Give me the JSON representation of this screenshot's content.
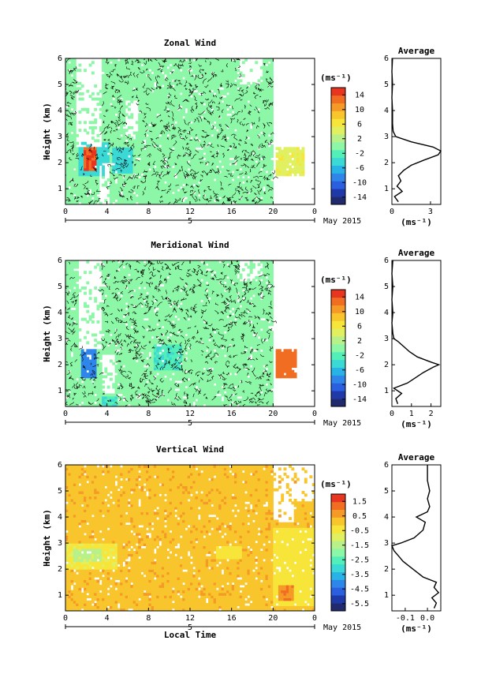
{
  "chart_data": [
    {
      "type": "heatmap",
      "title": "Zonal Wind",
      "ylabel": "Height (km)",
      "xlabel": "",
      "xticks": [
        "0",
        "4",
        "8",
        "12",
        "16",
        "20",
        "0"
      ],
      "yticks": [
        "1",
        "2",
        "3",
        "4",
        "5",
        "6"
      ],
      "ylim": [
        0.4,
        6
      ],
      "xlim": [
        0,
        24
      ],
      "date_label": "5",
      "month_label": "May 2015",
      "colorbar": {
        "unit": "(ms⁻¹)",
        "ticks": [
          "14",
          "10",
          "6",
          "2",
          "-2",
          "-6",
          "-10",
          "-14"
        ],
        "range": [
          -16,
          16
        ]
      },
      "regions": [
        {
          "x": [
            0,
            20
          ],
          "y": [
            0.4,
            6
          ],
          "value": 0,
          "desc": "background"
        },
        {
          "x": [
            1.2,
            4.2
          ],
          "y": [
            1.5,
            2.8
          ],
          "value": -4
        },
        {
          "x": [
            1.8,
            3.0
          ],
          "y": [
            1.7,
            2.6
          ],
          "value": 14
        },
        {
          "x": [
            4.6,
            6.4
          ],
          "y": [
            1.6,
            2.6
          ],
          "value": -4
        },
        {
          "x": [
            20.2,
            23.0
          ],
          "y": [
            1.5,
            2.6
          ],
          "value": 5
        }
      ],
      "gaps": [
        {
          "x": [
            1.0,
            3.6
          ],
          "y": [
            2.6,
            6.0
          ]
        },
        {
          "x": [
            3.2,
            4.2
          ],
          "y": [
            0.4,
            2.0
          ]
        },
        {
          "x": [
            5.8,
            7.0
          ],
          "y": [
            3.0,
            4.4
          ]
        },
        {
          "x": [
            16.8,
            19.0
          ],
          "y": [
            5.0,
            6.0
          ]
        }
      ],
      "average": {
        "title": "Average",
        "xlabel": "(ms⁻¹)",
        "xticks": [
          "0",
          "3"
        ],
        "xlim": [
          0,
          3.8
        ],
        "height": [
          0.5,
          0.7,
          0.9,
          1.1,
          1.3,
          1.5,
          1.7,
          1.9,
          2.1,
          2.3,
          2.45,
          2.6,
          2.8,
          3.0,
          3.2,
          3.5,
          4.0,
          4.5,
          5.0,
          5.5,
          6.0
        ],
        "values": [
          0.5,
          0.2,
          0.8,
          0.4,
          0.7,
          0.5,
          0.9,
          1.5,
          2.5,
          3.6,
          3.8,
          3.2,
          1.5,
          0.3,
          0.1,
          0.05,
          0.05,
          0.0,
          0.05,
          0.0,
          0.05
        ]
      }
    },
    {
      "type": "heatmap",
      "title": "Meridional Wind",
      "ylabel": "Height (km)",
      "xlabel": "",
      "xticks": [
        "0",
        "4",
        "8",
        "12",
        "16",
        "20",
        "0"
      ],
      "yticks": [
        "1",
        "2",
        "3",
        "4",
        "5",
        "6"
      ],
      "ylim": [
        0.4,
        6
      ],
      "xlim": [
        0,
        24
      ],
      "date_label": "5",
      "month_label": "May 2015",
      "colorbar": {
        "unit": "(ms⁻¹)",
        "ticks": [
          "14",
          "10",
          "6",
          "2",
          "-2",
          "-6",
          "-10",
          "-14"
        ],
        "range": [
          -16,
          16
        ]
      },
      "regions": [
        {
          "x": [
            0,
            20
          ],
          "y": [
            0.4,
            6
          ],
          "value": 0,
          "desc": "background"
        },
        {
          "x": [
            1.5,
            3.0
          ],
          "y": [
            1.5,
            2.6
          ],
          "value": -9
        },
        {
          "x": [
            3.5,
            5.0
          ],
          "y": [
            0.4,
            0.8
          ],
          "value": -3
        },
        {
          "x": [
            8.6,
            11.2
          ],
          "y": [
            1.8,
            2.8
          ],
          "value": -3
        },
        {
          "x": [
            20.2,
            22.2
          ],
          "y": [
            1.5,
            2.6
          ],
          "value": 13
        }
      ],
      "gaps": [
        {
          "x": [
            1.2,
            3.4
          ],
          "y": [
            2.6,
            6.0
          ]
        },
        {
          "x": [
            3.4,
            4.8
          ],
          "y": [
            0.9,
            2.4
          ]
        },
        {
          "x": [
            16.8,
            19.0
          ],
          "y": [
            5.2,
            6.0
          ]
        }
      ],
      "average": {
        "title": "Average",
        "xlabel": "(ms⁻¹)",
        "xticks": [
          "0",
          "1",
          "2"
        ],
        "xlim": [
          0,
          2.5
        ],
        "height": [
          0.5,
          0.7,
          0.9,
          1.1,
          1.3,
          1.5,
          1.7,
          1.9,
          2.0,
          2.1,
          2.3,
          2.5,
          2.7,
          2.9,
          3.0,
          3.2,
          3.6,
          4.0,
          4.5,
          5.0,
          5.5,
          6.0
        ],
        "values": [
          0.3,
          0.2,
          0.5,
          0.1,
          0.8,
          1.2,
          1.6,
          2.1,
          2.4,
          2.0,
          1.3,
          0.9,
          0.6,
          0.3,
          0.1,
          0.05,
          0.0,
          0.05,
          0.0,
          0.05,
          0.0,
          0.05
        ]
      }
    },
    {
      "type": "heatmap",
      "title": "Vertical Wind",
      "ylabel": "Height (km)",
      "xlabel": "Local Time",
      "xticks": [
        "0",
        "4",
        "8",
        "12",
        "16",
        "20",
        "0"
      ],
      "yticks": [
        "1",
        "2",
        "3",
        "4",
        "5",
        "6"
      ],
      "ylim": [
        0.4,
        6
      ],
      "xlim": [
        0,
        24
      ],
      "date_label": "5",
      "month_label": "May 2015",
      "colorbar": {
        "unit": "(ms⁻¹)",
        "ticks": [
          "1.5",
          "0.5",
          "-0.5",
          "-1.5",
          "-2.5",
          "-3.5",
          "-4.5",
          "-5.5"
        ],
        "range": [
          -6.0,
          2.0
        ]
      },
      "regions": [
        {
          "x": [
            0,
            24
          ],
          "y": [
            0.4,
            6
          ],
          "value": 0.3,
          "desc": "background"
        },
        {
          "x": [
            0,
            5.0
          ],
          "y": [
            2.0,
            3.0
          ],
          "value": -0.6
        },
        {
          "x": [
            0.8,
            3.5
          ],
          "y": [
            2.3,
            2.8
          ],
          "value": -1.3
        },
        {
          "x": [
            14.6,
            17.0
          ],
          "y": [
            2.4,
            2.9
          ],
          "value": -0.4
        },
        {
          "x": [
            20.0,
            24.0
          ],
          "y": [
            0.6,
            3.6
          ],
          "value": -0.5
        },
        {
          "x": [
            20.5,
            22.0
          ],
          "y": [
            0.8,
            1.4
          ],
          "value": 0.9
        }
      ],
      "gaps": [
        {
          "x": [
            20.0,
            22.0
          ],
          "y": [
            3.8,
            6.0
          ]
        },
        {
          "x": [
            22.0,
            24.0
          ],
          "y": [
            4.6,
            6.0
          ]
        }
      ],
      "average": {
        "title": "Average",
        "xlabel": "(ms⁻¹)",
        "xticks": [
          "-0.1",
          "0.0"
        ],
        "xlim": [
          -0.16,
          0.06
        ],
        "height": [
          0.5,
          0.7,
          0.9,
          1.1,
          1.3,
          1.5,
          1.7,
          1.9,
          2.1,
          2.3,
          2.5,
          2.7,
          2.9,
          3.0,
          3.2,
          3.5,
          3.8,
          4.0,
          4.2,
          4.4,
          4.7,
          5.0,
          5.4,
          5.8,
          6.0
        ],
        "values": [
          0.03,
          0.04,
          0.02,
          0.05,
          0.03,
          0.04,
          -0.02,
          -0.05,
          -0.08,
          -0.11,
          -0.13,
          -0.15,
          -0.16,
          -0.12,
          -0.06,
          -0.02,
          -0.01,
          -0.05,
          0.0,
          0.01,
          0.0,
          0.01,
          0.0,
          0.0,
          0.0
        ]
      }
    }
  ],
  "colors": {
    "scale": [
      "#202a6e",
      "#1f3aa8",
      "#2a5fe0",
      "#2f86ea",
      "#27b3e6",
      "#3ad9d6",
      "#52f0b8",
      "#8cf7a6",
      "#b8f08a",
      "#e0f060",
      "#f8e53a",
      "#f8c62c",
      "#f59a26",
      "#f06d22",
      "#e8351f"
    ]
  }
}
